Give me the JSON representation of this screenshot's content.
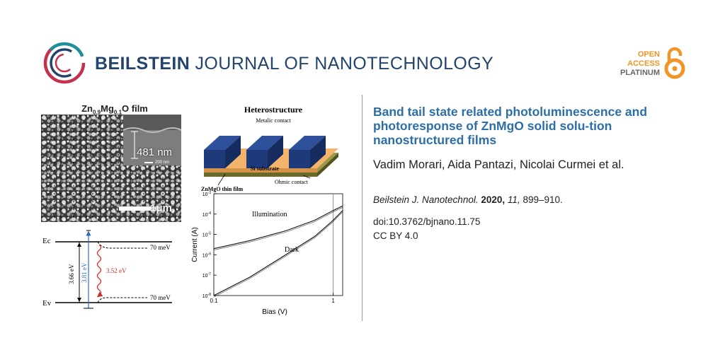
{
  "header": {
    "journal_bold": "BEILSTEIN",
    "journal_rest": " JOURNAL OF NANOTECHNOLOGY",
    "oa_line1": "OPEN",
    "oa_line2": "ACCESS",
    "oa_line3": "PLATINUM"
  },
  "colors": {
    "brand_blue": "#23446c",
    "title_blue": "#2d6ea6",
    "oa_orange": "#f39426",
    "logo_red": "#c3314c",
    "logo_teal": "#1f8f9a"
  },
  "article": {
    "title": "Band tail state related photoluminescence and photoresponse of ZnMgO solid solu-tion nanostructured films",
    "authors": "Vadim Morari, Aida Pantazi, Nicolai Curmei et al.",
    "citation_journal": "Beilstein J. Nanotechnol.",
    "citation_year": "2020,",
    "citation_volume": "11,",
    "citation_pages": "899–910.",
    "doi": "doi:10.3762/bjnano.11.75",
    "license": "CC BY 4.0"
  },
  "graphical_abstract": {
    "sem": {
      "title_main": "Zn",
      "title_sub1": "0.9",
      "title_mid": "Mg",
      "title_sub2": "0.1",
      "title_end": "O film",
      "thickness": "481 nm",
      "inset_scale": "200 nm",
      "scale": "1μm"
    },
    "heterostructure": {
      "title": "Heterostructure",
      "metal_label": "Metalic contact",
      "substrate_label": "Si substrate",
      "ohmic_label": "Ohmic contact",
      "film_label": "ZnMgO thin film"
    },
    "band_diagram": {
      "ec": "Ec",
      "ev": "Ev",
      "gap": "3.66 eV",
      "excitation": "3.81 eV",
      "emission": "3.52 eV",
      "tail_top": "70 meV",
      "tail_bottom": "70 meV"
    },
    "iv_plot": {
      "illumination": "Illumination",
      "dark": "Dark"
    }
  },
  "chart_data": {
    "type": "line",
    "xlabel": "Bias (V)",
    "ylabel": "Current (A)",
    "x_scale": "log",
    "y_scale": "log",
    "xlim": [
      0.1,
      1.2
    ],
    "ylim": [
      1e-08,
      0.001
    ],
    "x_ticks": [
      "0.1",
      "1"
    ],
    "y_ticks": [
      "10-8",
      "10-7",
      "10-6",
      "10-5",
      "10-4",
      "10-3"
    ],
    "grid": false,
    "series": [
      {
        "name": "Illumination",
        "x": [
          0.1,
          0.2,
          0.4,
          0.7,
          1.0,
          1.2
        ],
        "y": [
          2e-06,
          5e-06,
          1.5e-05,
          5e-05,
          0.00015,
          0.00025
        ]
      },
      {
        "name": "Dark",
        "x": [
          0.1,
          0.2,
          0.4,
          0.7,
          1.0,
          1.2
        ],
        "y": [
          1e-08,
          8e-08,
          1e-06,
          8e-06,
          5e-05,
          0.00015
        ]
      }
    ]
  }
}
